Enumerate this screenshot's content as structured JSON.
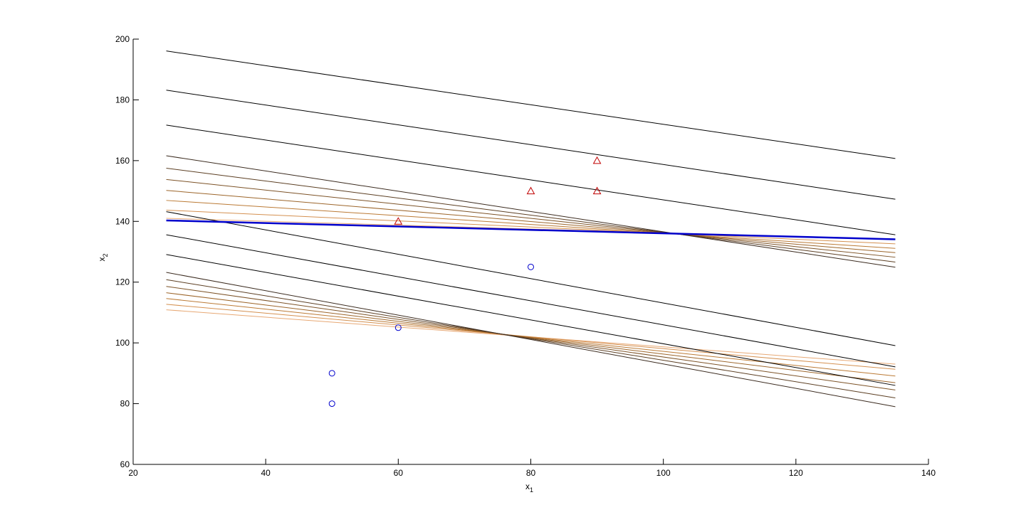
{
  "chart_data": {
    "type": "scatter",
    "title": "",
    "xlabel": "x",
    "xlabel_sub": "1",
    "ylabel": "x",
    "ylabel_sub": "2",
    "xlim": [
      20,
      140
    ],
    "ylim": [
      60,
      200
    ],
    "xticks": [
      "20",
      "40",
      "60",
      "80",
      "100",
      "120",
      "140"
    ],
    "yticks": [
      "60",
      "80",
      "100",
      "120",
      "140",
      "160",
      "180",
      "200"
    ],
    "grid": false,
    "legend": "none",
    "scatter_series": [
      {
        "marker": "triangle",
        "color": "#c00000",
        "points": [
          [
            60,
            140
          ],
          [
            80,
            150
          ],
          [
            90,
            150
          ],
          [
            90,
            160
          ]
        ]
      },
      {
        "marker": "circle",
        "color": "#0000cc",
        "points": [
          [
            50,
            80
          ],
          [
            50,
            90
          ],
          [
            60,
            105
          ],
          [
            80,
            125
          ]
        ]
      }
    ],
    "line_x_range": [
      25,
      135
    ],
    "boundary_line": {
      "color": "#0000cc",
      "y_at_x25": 140.3,
      "y_at_x135": 134.1
    },
    "black_lines": [
      {
        "y_at_x25": 196.1,
        "y_at_x135": 160.7
      },
      {
        "y_at_x25": 183.2,
        "y_at_x135": 147.3
      },
      {
        "y_at_x25": 171.7,
        "y_at_x135": 135.6
      },
      {
        "y_at_x25": 143.2,
        "y_at_x135": 99.1
      },
      {
        "y_at_x25": 135.6,
        "y_at_x135": 92.1
      },
      {
        "y_at_x25": 129.1,
        "y_at_x135": 86.0
      }
    ],
    "upper_fan": [
      {
        "color": "#3a2a1e",
        "y_at_x25": 161.6,
        "y_at_x135": 124.9
      },
      {
        "color": "#5b3e22",
        "y_at_x25": 157.5,
        "y_at_x135": 126.6
      },
      {
        "color": "#7c5226",
        "y_at_x25": 153.8,
        "y_at_x135": 128.2
      },
      {
        "color": "#9c652a",
        "y_at_x25": 150.2,
        "y_at_x135": 129.7
      },
      {
        "color": "#bb7a35",
        "y_at_x25": 146.9,
        "y_at_x135": 131.1
      },
      {
        "color": "#d49050",
        "y_at_x25": 143.7,
        "y_at_x135": 132.6
      },
      {
        "color": "#e7a874",
        "y_at_x25": 141.0,
        "y_at_x135": 134.0
      }
    ],
    "lower_fan": [
      {
        "color": "#3a2a1e",
        "y_at_x25": 123.2,
        "y_at_x135": 79.0
      },
      {
        "color": "#5b3e22",
        "y_at_x25": 120.8,
        "y_at_x135": 81.9
      },
      {
        "color": "#7c5226",
        "y_at_x25": 118.6,
        "y_at_x135": 84.5
      },
      {
        "color": "#9c652a",
        "y_at_x25": 116.5,
        "y_at_x135": 86.9
      },
      {
        "color": "#bb7a35",
        "y_at_x25": 114.6,
        "y_at_x135": 89.1
      },
      {
        "color": "#d49050",
        "y_at_x25": 112.7,
        "y_at_x135": 91.3
      },
      {
        "color": "#e7a874",
        "y_at_x25": 110.9,
        "y_at_x135": 93.0
      }
    ]
  }
}
